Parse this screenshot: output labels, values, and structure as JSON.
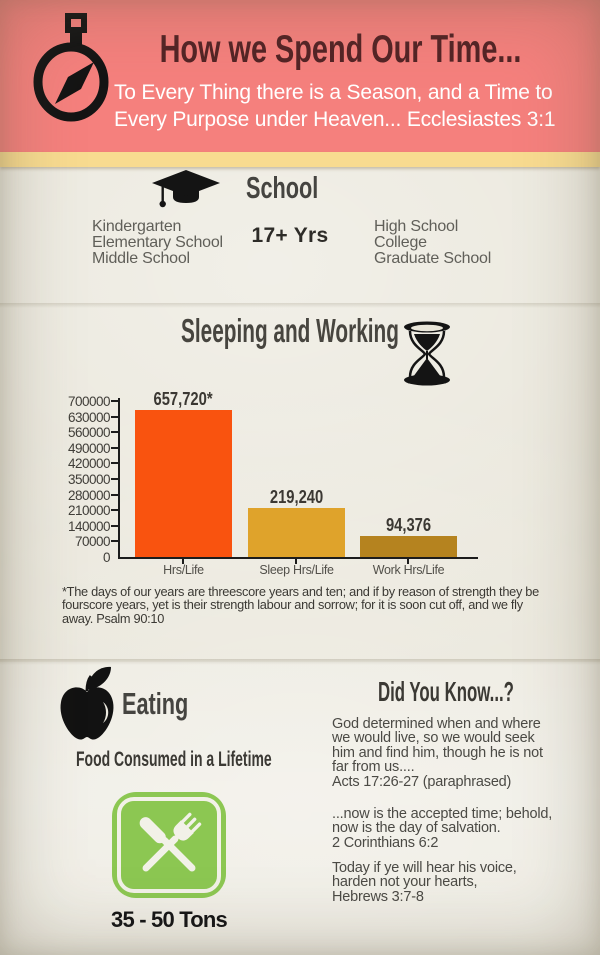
{
  "header": {
    "title": "How we Spend Our Time...",
    "subtitle_lines": [
      "To Every Thing there is a Season, and a Time to",
      "Every Purpose under Heaven... Ecclesiastes 3:1"
    ],
    "icon": "stopwatch-icon",
    "background_color": "#F5807D",
    "title_color": "#532325",
    "ribbon_color": "#F8DB90"
  },
  "school": {
    "icon": "graduation-cap-icon",
    "heading": "School",
    "left_items": [
      "Kindergarten",
      "Elementary School",
      "Middle School"
    ],
    "duration": "17+ Yrs",
    "right_items": [
      "High School",
      "College",
      "Graduate School"
    ]
  },
  "sleeping_working": {
    "heading": "Sleeping and Working",
    "icon": "hourglass-icon",
    "footnote_lines": [
      "*The days of our years are threescore years and ten; and if by reason of strength they be",
      "fourscore years, yet is their strength labour and sorrow; for it is soon cut off, and we fly",
      "away. Psalm 90:10"
    ]
  },
  "chart_data": {
    "type": "bar",
    "title": "Sleeping and Working",
    "categories": [
      "Hrs/Life",
      "Sleep Hrs/Life",
      "Work Hrs/Life"
    ],
    "values": [
      657720,
      219240,
      94376
    ],
    "bar_labels": [
      "657,720*",
      "219,240",
      "94,376"
    ],
    "bar_colors": [
      "#F9530F",
      "#DFA32B",
      "#B5831F"
    ],
    "xlabel": "",
    "ylabel": "",
    "ylim": [
      0,
      700000
    ],
    "ytick_interval": 70000,
    "grid": false,
    "legend": false
  },
  "eating": {
    "icon": "apple-icon",
    "heading": "Eating",
    "subheading": "Food Consumed in a Lifetime",
    "badge_icon": "cutlery-icon",
    "badge_color": "#8CC752",
    "amount": "35 - 50 Tons"
  },
  "did_you_know": {
    "heading": "Did You Know...?",
    "paragraphs": [
      {
        "lines": [
          "God determined when and where",
          "we would live, so we would seek",
          "him and find him, though he is not",
          "far from us....",
          "Acts 17:26-27 (paraphrased)"
        ]
      },
      {
        "lines": [
          "...now is the accepted time; behold,",
          "now is the day of salvation.",
          "2 Corinthians 6:2"
        ]
      },
      {
        "lines": [
          "Today if ye will hear his voice,",
          "harden not your hearts,",
          "Hebrews 3:7-8"
        ]
      }
    ]
  }
}
